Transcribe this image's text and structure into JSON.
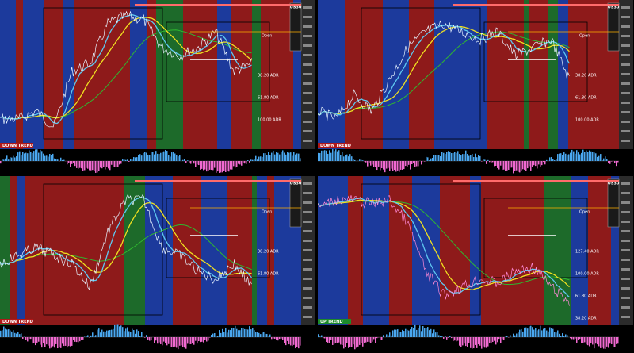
{
  "panels": [
    {
      "symbol": "US30",
      "trend": "DOWN TREND",
      "open": "Open",
      "adr": [
        "38.20 ADR",
        "61.80 ADR",
        "100.00 ADR"
      ]
    },
    {
      "symbol": "US30",
      "trend": "DOWN TREND",
      "open": "Open",
      "adr": [
        "38.20 ADR",
        "61.80 ADR",
        "100.00 ADR"
      ]
    },
    {
      "symbol": "US30",
      "trend": "DOWN TREND",
      "open": "Open",
      "adr": [
        "38.20 ADR",
        "61.80 ADR"
      ]
    },
    {
      "symbol": "US30",
      "trend": "UP TREND",
      "open": "Open",
      "adr": [
        "127.40 ADR",
        "100.00 ADR",
        "61.80 ADR",
        "38.20 ADR"
      ]
    }
  ]
}
